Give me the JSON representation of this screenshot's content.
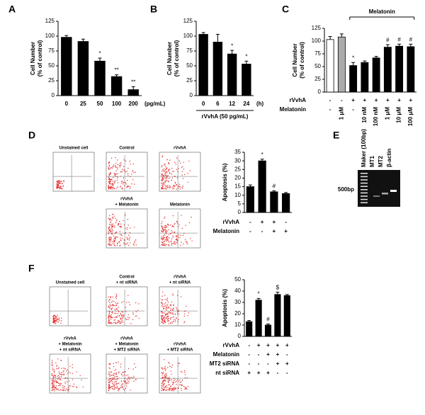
{
  "chart_data": [
    {
      "type": "bar",
      "panel": "A",
      "ylabel": [
        "Cell Number",
        "(% of control)"
      ],
      "categories": [
        "0",
        "25",
        "50",
        "100",
        "200"
      ],
      "xunit": "(pg/mL)",
      "values": [
        98,
        91,
        58,
        32,
        10
      ],
      "errors": [
        3,
        4,
        5,
        3,
        5
      ],
      "markers": [
        null,
        null,
        "*",
        "**",
        "**"
      ],
      "colors": [
        "#000",
        "#000",
        "#000",
        "#000",
        "#000"
      ],
      "ylim": [
        0,
        125
      ],
      "yticks": [
        0,
        25,
        50,
        75,
        100,
        125
      ]
    },
    {
      "type": "bar",
      "panel": "B",
      "ylabel": [
        "Cell Number",
        "(% of control)"
      ],
      "categories": [
        "0",
        "6",
        "12",
        "24"
      ],
      "xunit": "(h)",
      "xlabel": "rVvhA (50 pg/mL)",
      "values": [
        103,
        90,
        70,
        53
      ],
      "errors": [
        3,
        13,
        6,
        5
      ],
      "markers": [
        null,
        null,
        "*",
        "*"
      ],
      "colors": [
        "#000",
        "#000",
        "#000",
        "#000"
      ],
      "ylim": [
        0,
        125
      ],
      "yticks": [
        0,
        25,
        50,
        75,
        100,
        125
      ]
    },
    {
      "type": "bar",
      "panel": "C",
      "ylabel": [
        "Cell Number",
        "(% of control)"
      ],
      "bracket": "Melatonin",
      "values": [
        103,
        108,
        52,
        58,
        67,
        88,
        90,
        89
      ],
      "errors": [
        6,
        6,
        6,
        3,
        3,
        5,
        4,
        5
      ],
      "markers": [
        null,
        null,
        "*",
        null,
        null,
        "#",
        "#",
        "#"
      ],
      "colors": [
        "#fff",
        "#aaa",
        "#000",
        "#000",
        "#000",
        "#000",
        "#000",
        "#000"
      ],
      "ylim": [
        0,
        125
      ],
      "yticks": [
        0,
        25,
        50,
        75,
        100,
        125
      ],
      "conditions": {
        "labels": [
          "rVvhA",
          "Melatonin"
        ],
        "rows": [
          [
            "-",
            "-",
            "+",
            "+",
            "+",
            "+",
            "+",
            "+"
          ],
          [
            "-",
            "1 μM",
            "-",
            "10 nM",
            "100 nM",
            "1 μM",
            "10 μM",
            "100 μM"
          ]
        ]
      }
    },
    {
      "type": "bar",
      "ylabel": [
        "Apoptosis (%)"
      ],
      "values": [
        15,
        30,
        12,
        11
      ],
      "errors": [
        1,
        1,
        0.6,
        0.6
      ],
      "markers": [
        null,
        "*",
        "#",
        null
      ],
      "colors": [
        "#000",
        "#000",
        "#000",
        "#000"
      ],
      "ylim": [
        0,
        35
      ],
      "yticks": [
        0,
        5,
        10,
        15,
        20,
        25,
        30,
        35
      ],
      "conditions": {
        "labels": [
          "rVvhA",
          "Melatonin"
        ],
        "rows": [
          [
            "-",
            "+",
            "+",
            "-"
          ],
          [
            "-",
            "-",
            "+",
            "+"
          ]
        ]
      }
    },
    {
      "type": "bar",
      "ylabel": [
        "Apoptosis (%)"
      ],
      "values": [
        13,
        32,
        10,
        37,
        36
      ],
      "errors": [
        1,
        1.5,
        1,
        2,
        1
      ],
      "markers": [
        null,
        "*",
        "#",
        "$",
        null
      ],
      "colors": [
        "#000",
        "#000",
        "#000",
        "#000",
        "#000"
      ],
      "ylim": [
        0,
        50
      ],
      "yticks": [
        0,
        10,
        20,
        30,
        40,
        50
      ],
      "conditions": {
        "labels": [
          "rVvhA",
          "Melatonin",
          "MT2 siRNA",
          "nt siRNA"
        ],
        "rows": [
          [
            "-",
            "+",
            "+",
            "+",
            "+"
          ],
          [
            "-",
            "-",
            "+",
            "+",
            "-"
          ],
          [
            "-",
            "-",
            "-",
            "+",
            "+"
          ],
          [
            "+",
            "+",
            "+",
            "-",
            "-"
          ]
        ]
      }
    }
  ],
  "flow_plots": {
    "D": {
      "label": "D",
      "plots": [
        [
          "Unstained cell"
        ],
        [
          "Control"
        ],
        [
          "rVvhA"
        ],
        [
          "rVvhA",
          "+ Melatonin"
        ],
        [
          "Melatonin"
        ]
      ]
    },
    "F": {
      "label": "F",
      "plots": [
        [
          "Unstained cell"
        ],
        [
          "Control",
          "+ nt siRNA"
        ],
        [
          "rVvhA",
          "+ nt siRNA"
        ],
        [
          "rVvhA",
          "+ Melatonin",
          "+ nt siRNA"
        ],
        [
          "rVvhA",
          "+ Melatonin",
          "+ MT2 siRNA"
        ],
        [
          "rVvhA",
          "+ MT2 siRNA"
        ]
      ]
    }
  },
  "gel": {
    "label": "E",
    "lanes": [
      "Maker (100bp)",
      "MT1",
      "MT2",
      "β-actin"
    ],
    "marker": "500bp"
  }
}
